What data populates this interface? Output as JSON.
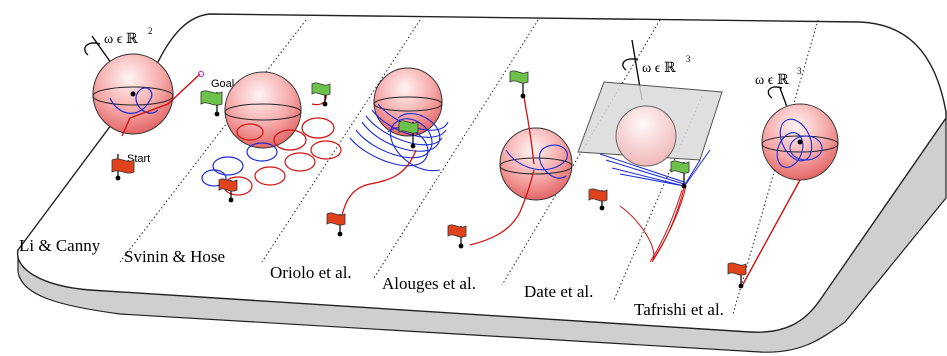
{
  "colors": {
    "red_path": "#d21010",
    "blue_path": "#1a2bd6",
    "sphere_top": "#fbe0e0",
    "sphere_mid": "#f07c7c",
    "flag_red": "#e0431b",
    "flag_green": "#6cc24a",
    "plane": "#c9c9c9",
    "goal_marker": "#b04ac0"
  },
  "sections": [
    {
      "label": "Li & Canny"
    },
    {
      "label": "Svinin & Hose"
    },
    {
      "label": "Oriolo et al."
    },
    {
      "label": "Alouges et al."
    },
    {
      "label": "Date et al."
    },
    {
      "label": "Tafrishi et al."
    }
  ],
  "annotations": {
    "goal": "Goal",
    "start": "Start",
    "omega_r2": "ω ϵ ℝ",
    "omega_r2_exp": "2",
    "omega_r3_a": "ω ϵ ℝ",
    "omega_r3_a_exp": "3",
    "omega_r3_b": "ω ϵ ℝ",
    "omega_r3_b_exp": "3"
  }
}
